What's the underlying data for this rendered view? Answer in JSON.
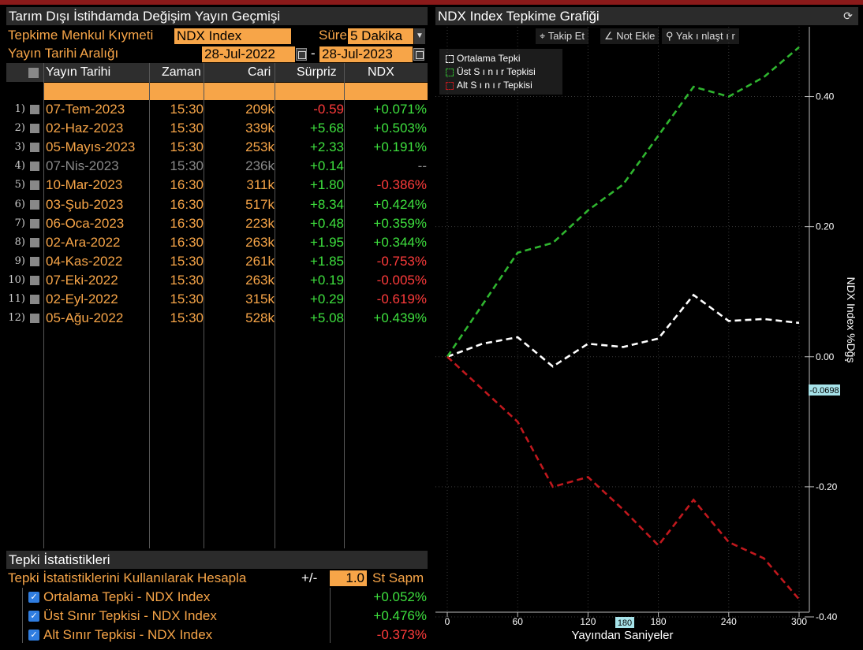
{
  "left": {
    "title": "Tarım Dışı İstihdamda Değişim Yayın Geçmişi",
    "security_label": "Tepkime Menkul Kıymeti",
    "security_value": "NDX Index",
    "duration_label": "Süre",
    "duration_value": "5 Dakika",
    "date_range_label": "Yayın Tarihi Aralığı",
    "date_from": "28-Jul-2022",
    "date_sep": "-",
    "date_to": "28-Jul-2023",
    "columns": [
      "Yayın Tarihi",
      "Zaman",
      "Cari",
      "Sürpriz",
      "NDX %Dğş"
    ],
    "rows": [
      {
        "idx": "1)",
        "date": "07-Tem-2023",
        "time": "15:30",
        "actual": "209k",
        "surprise": "-0.59",
        "chg": "+0.071%",
        "sc": "red",
        "cc": "green",
        "dim": false
      },
      {
        "idx": "2)",
        "date": "02-Haz-2023",
        "time": "15:30",
        "actual": "339k",
        "surprise": "+5.68",
        "chg": "+0.503%",
        "sc": "green",
        "cc": "green",
        "dim": false
      },
      {
        "idx": "3)",
        "date": "05-Mayıs-2023",
        "time": "15:30",
        "actual": "253k",
        "surprise": "+2.33",
        "chg": "+0.191%",
        "sc": "green",
        "cc": "green",
        "dim": false
      },
      {
        "idx": "4)",
        "date": "07-Nis-2023",
        "time": "15:30",
        "actual": "236k",
        "surprise": "+0.14",
        "chg": "--",
        "sc": "green",
        "cc": "grey",
        "dim": true
      },
      {
        "idx": "5)",
        "date": "10-Mar-2023",
        "time": "16:30",
        "actual": "311k",
        "surprise": "+1.80",
        "chg": "-0.386%",
        "sc": "green",
        "cc": "red",
        "dim": false
      },
      {
        "idx": "6)",
        "date": "03-Şub-2023",
        "time": "16:30",
        "actual": "517k",
        "surprise": "+8.34",
        "chg": "+0.424%",
        "sc": "green",
        "cc": "green",
        "dim": false
      },
      {
        "idx": "7)",
        "date": "06-Oca-2023",
        "time": "16:30",
        "actual": "223k",
        "surprise": "+0.48",
        "chg": "+0.359%",
        "sc": "green",
        "cc": "green",
        "dim": false
      },
      {
        "idx": "8)",
        "date": "02-Ara-2022",
        "time": "16:30",
        "actual": "263k",
        "surprise": "+1.95",
        "chg": "+0.344%",
        "sc": "green",
        "cc": "green",
        "dim": false
      },
      {
        "idx": "9)",
        "date": "04-Kas-2022",
        "time": "15:30",
        "actual": "261k",
        "surprise": "+1.85",
        "chg": "-0.753%",
        "sc": "green",
        "cc": "red",
        "dim": false
      },
      {
        "idx": "10)",
        "date": "07-Eki-2022",
        "time": "15:30",
        "actual": "263k",
        "surprise": "+0.19",
        "chg": "-0.005%",
        "sc": "green",
        "cc": "red",
        "dim": false
      },
      {
        "idx": "11)",
        "date": "02-Eyl-2022",
        "time": "15:30",
        "actual": "315k",
        "surprise": "+0.29",
        "chg": "-0.619%",
        "sc": "green",
        "cc": "red",
        "dim": false
      },
      {
        "idx": "12)",
        "date": "05-Ağu-2022",
        "time": "15:30",
        "actual": "528k",
        "surprise": "+5.08",
        "chg": "+0.439%",
        "sc": "green",
        "cc": "green",
        "dim": false
      }
    ],
    "stats_title": "Tepki İstatistikleri",
    "stats_calc_label": "Tepki İstatistiklerini Kullanılarak Hesapla",
    "stats_pm": "+/-",
    "stats_sd_value": "1.0",
    "stats_sd_label": "St Sapm",
    "stats_rows": [
      {
        "label": "Ortalama Tepki - NDX Index",
        "value": "+0.052%",
        "color": "green"
      },
      {
        "label": "Üst Sınır Tepkisi - NDX Index",
        "value": "+0.476%",
        "color": "green"
      },
      {
        "label": "Alt Sınır Tepkisi - NDX Index",
        "value": "-0.373%",
        "color": "red"
      }
    ]
  },
  "right": {
    "title": "NDX Index Tepkime Grafiği",
    "toolbar": {
      "follow": "Takip Et",
      "note": "Not Ekle",
      "zoom": "Yak ı nlaşt ı r"
    },
    "legend": [
      "Ortalama Tepki",
      "Üst S ı n ı r Tepkisi",
      "Alt S ı n ı r Tepkisi"
    ],
    "cursor_x_label": "180",
    "cursor_y_label": "-0.0698"
  },
  "chart_data": {
    "type": "line",
    "xlabel": "Yayından Saniyeler",
    "ylabel": "NDX Index %Dğş",
    "xlim": [
      0,
      300
    ],
    "ylim": [
      -0.4,
      0.5
    ],
    "xticks": [
      0,
      60,
      120,
      180,
      240,
      300
    ],
    "yticks": [
      "0.40",
      "0.20",
      "0.00",
      "-0.20",
      "-0.40"
    ],
    "ytick_values": [
      0.4,
      0.2,
      0.0,
      -0.2,
      -0.4
    ],
    "x": [
      0,
      30,
      60,
      90,
      120,
      150,
      180,
      210,
      240,
      270,
      300
    ],
    "series": [
      {
        "name": "Ortalama Tepki",
        "color": "#ffffff",
        "values": [
          0.0,
          0.02,
          0.03,
          -0.015,
          0.02,
          0.015,
          0.028,
          0.095,
          0.055,
          0.058,
          0.052
        ]
      },
      {
        "name": "Üst S ı n ı r Tepkisi",
        "color": "#2fb52f",
        "values": [
          0.0,
          0.08,
          0.16,
          0.175,
          0.225,
          0.265,
          0.34,
          0.415,
          0.4,
          0.43,
          0.476
        ]
      },
      {
        "name": "Alt S ı n ı r Tepkisi",
        "color": "#c0181d",
        "values": [
          0.0,
          -0.05,
          -0.1,
          -0.2,
          -0.185,
          -0.235,
          -0.29,
          -0.22,
          -0.285,
          -0.31,
          -0.373
        ]
      }
    ],
    "grid": true
  }
}
